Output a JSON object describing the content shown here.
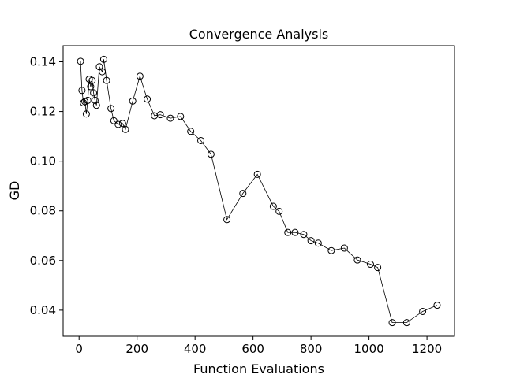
{
  "chart_data": {
    "type": "line",
    "title": "Convergence Analysis",
    "xlabel": "Function Evaluations",
    "ylabel": "GD",
    "xlim": [
      -55,
      1295
    ],
    "ylim": [
      0.0295,
      0.1465
    ],
    "xticks": [
      0,
      200,
      400,
      600,
      800,
      1000,
      1200
    ],
    "yticks": [
      0.04,
      0.06,
      0.08,
      0.1,
      0.12,
      0.14
    ],
    "ytick_labels": [
      "0.04",
      "0.06",
      "0.08",
      "0.10",
      "0.12",
      "0.14"
    ],
    "grid": false,
    "series": [
      {
        "marker": "open-circle",
        "color": "#000000",
        "x": [
          5,
          10,
          15,
          20,
          25,
          30,
          35,
          40,
          45,
          50,
          55,
          60,
          70,
          80,
          85,
          95,
          110,
          120,
          135,
          150,
          160,
          185,
          210,
          235,
          260,
          280,
          315,
          350,
          385,
          420,
          455,
          510,
          565,
          615,
          670,
          690,
          720,
          745,
          775,
          800,
          825,
          870,
          915,
          960,
          1005,
          1030,
          1080,
          1130,
          1185,
          1235
        ],
        "y": [
          0.1402,
          0.1285,
          0.1235,
          0.124,
          0.119,
          0.1245,
          0.133,
          0.13,
          0.1325,
          0.1275,
          0.1245,
          0.1225,
          0.138,
          0.136,
          0.141,
          0.1325,
          0.1212,
          0.1163,
          0.1148,
          0.1152,
          0.1128,
          0.1242,
          0.1342,
          0.125,
          0.1183,
          0.1187,
          0.1173,
          0.118,
          0.112,
          0.1083,
          0.1028,
          0.0765,
          0.087,
          0.0947,
          0.0818,
          0.0798,
          0.0713,
          0.0713,
          0.0705,
          0.068,
          0.067,
          0.064,
          0.065,
          0.0602,
          0.0585,
          0.0572,
          0.035,
          0.035,
          0.0395,
          0.042
        ]
      }
    ]
  }
}
